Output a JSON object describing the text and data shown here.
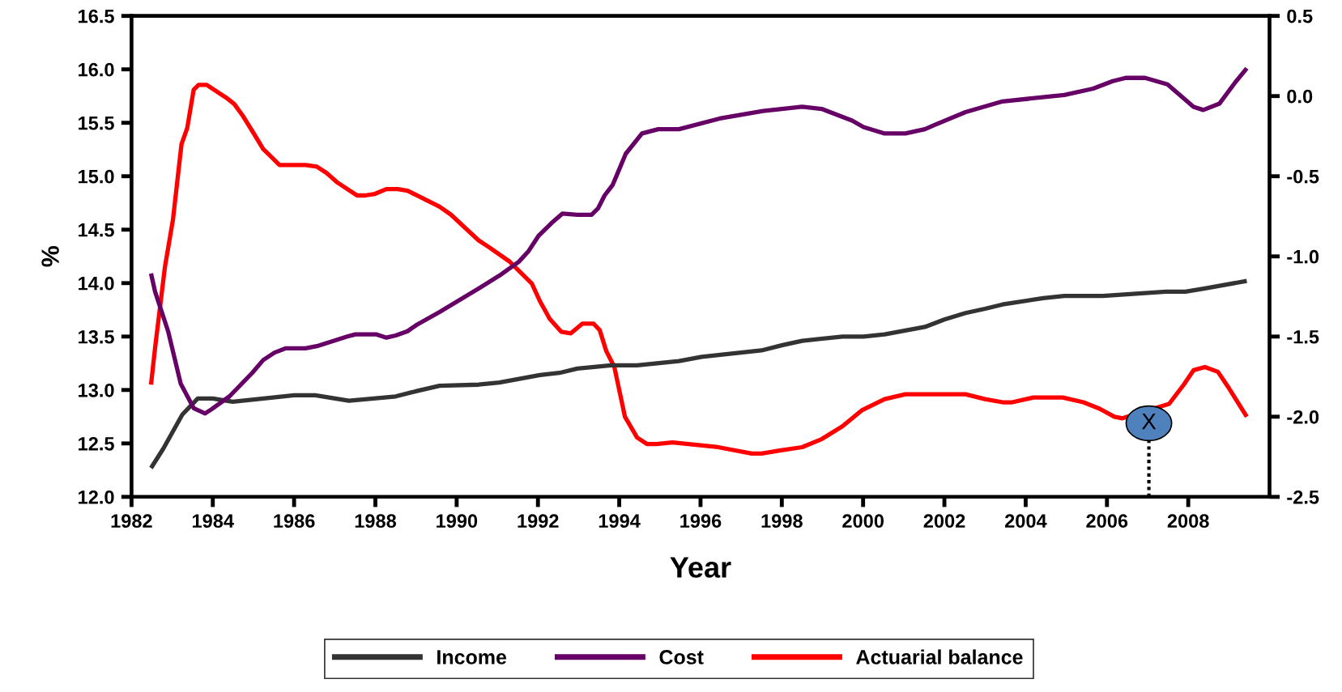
{
  "chart_data": {
    "type": "line",
    "xlabel": "Year",
    "ylabel": "%",
    "xlim": [
      1982,
      2010
    ],
    "xticks": [
      1982,
      1984,
      1986,
      1988,
      1990,
      1992,
      1994,
      1996,
      1998,
      2000,
      2002,
      2004,
      2006,
      2008
    ],
    "ylim": [
      12,
      16.5
    ],
    "yticks": [
      {
        "value": 12,
        "label": "12.0"
      },
      12.5,
      {
        "value": 13,
        "label": "13.0"
      },
      13.5,
      {
        "value": 14,
        "label": "14.0"
      },
      14.5,
      {
        "value": 15,
        "label": "15.0"
      },
      15.5,
      {
        "value": 16,
        "label": "16.0"
      },
      16.5
    ],
    "y2lim": [
      -2.5,
      0.5
    ],
    "y2ticks": [
      {
        "value": -2.5,
        "label": "-2.5"
      },
      {
        "value": -2,
        "label": "-2.0"
      },
      {
        "value": -1.5,
        "label": "-1.5"
      },
      {
        "value": -1,
        "label": "-1.0"
      },
      {
        "value": -0.5,
        "label": "-0.5"
      },
      {
        "value": 0,
        "label": "0.0"
      },
      0.5
    ],
    "grid": false,
    "legend": "bottom",
    "marker": "none",
    "line_style": "solid",
    "annotations": [
      "X"
    ],
    "series": [
      {
        "name": "Income",
        "color": "#333333",
        "x": [
          1982.48,
          1982.78,
          1983.25,
          1983.63,
          1984.0,
          1984.49,
          1986.0,
          1986.52,
          1987.35,
          1988.5,
          1989.02,
          1989.58,
          1990.54,
          1991.05,
          1992.05,
          1992.53,
          1992.97,
          1993.8,
          1994.44,
          1995.47,
          1996.03,
          1997.5,
          1998.02,
          1998.5,
          1999.49,
          2000.01,
          2000.53,
          2001.52,
          2002.0,
          2002.52,
          2003.0,
          2003.43,
          2004.43,
          2004.95,
          2005.9,
          2007.45,
          2007.93,
          2008.41,
          2009.44
        ],
        "values": [
          12.27,
          12.45,
          12.77,
          12.92,
          12.92,
          12.89,
          12.95,
          12.95,
          12.9,
          12.94,
          12.99,
          13.04,
          13.05,
          13.07,
          13.14,
          13.16,
          13.2,
          13.23,
          13.23,
          13.27,
          13.31,
          13.37,
          13.42,
          13.46,
          13.5,
          13.5,
          13.52,
          13.59,
          13.66,
          13.72,
          13.76,
          13.8,
          13.86,
          13.88,
          13.88,
          13.92,
          13.92,
          13.95,
          14.02
        ]
      },
      {
        "name": "Cost",
        "color": "#660066",
        "x": [
          1982.48,
          1982.58,
          1982.9,
          1983.21,
          1983.53,
          1983.81,
          1983.97,
          1984.41,
          1984.97,
          1985.24,
          1985.52,
          1985.8,
          1986.28,
          1986.56,
          1987.31,
          1987.51,
          1988.03,
          1988.27,
          1988.5,
          1988.79,
          1989.02,
          1989.58,
          1990.54,
          1991.05,
          1991.53,
          1991.77,
          1992.01,
          1992.33,
          1992.6,
          1992.97,
          1993.32,
          1993.48,
          1993.64,
          1993.84,
          1994.16,
          1994.56,
          1994.96,
          1995.47,
          1996.47,
          1997.54,
          1998.5,
          1998.98,
          1999.73,
          2000.01,
          2000.53,
          2001.04,
          2001.52,
          2001.76,
          2002.52,
          2003.43,
          2004.95,
          2005.66,
          2006.14,
          2006.46,
          2006.94,
          2007.49,
          2008.13,
          2008.37,
          2008.77,
          2009.16,
          2009.44
        ],
        "values": [
          14.09,
          13.92,
          13.55,
          13.06,
          12.83,
          12.78,
          12.82,
          12.94,
          13.16,
          13.28,
          13.35,
          13.39,
          13.39,
          13.41,
          13.5,
          13.52,
          13.52,
          13.49,
          13.51,
          13.55,
          13.61,
          13.73,
          13.95,
          14.07,
          14.2,
          14.3,
          14.44,
          14.56,
          14.65,
          14.64,
          14.64,
          14.7,
          14.82,
          14.92,
          15.21,
          15.4,
          15.44,
          15.44,
          15.54,
          15.61,
          15.65,
          15.63,
          15.52,
          15.46,
          15.4,
          15.4,
          15.44,
          15.48,
          15.6,
          15.7,
          15.76,
          15.82,
          15.89,
          15.92,
          15.92,
          15.86,
          15.65,
          15.62,
          15.68,
          15.88,
          16.01
        ]
      },
      {
        "name": "Actuarial balance",
        "color": "#ff0000",
        "axis": "y2",
        "x": [
          1982.48,
          1982.58,
          1982.82,
          1983.02,
          1983.23,
          1983.37,
          1983.53,
          1983.65,
          1983.85,
          1984.33,
          1984.53,
          1984.73,
          1985.0,
          1985.24,
          1985.44,
          1985.64,
          1986.28,
          1986.56,
          1986.8,
          1987.07,
          1987.55,
          1987.75,
          1987.99,
          1988.27,
          1988.55,
          1988.79,
          1989.58,
          1989.86,
          1990.54,
          1990.78,
          1991.29,
          1991.85,
          1992.05,
          1992.29,
          1992.57,
          1992.81,
          1993.09,
          1993.37,
          1993.52,
          1993.68,
          1993.88,
          1994.14,
          1994.44,
          1994.68,
          1994.92,
          1995.31,
          1996.43,
          1997.26,
          1997.5,
          1997.98,
          1998.5,
          1998.98,
          1999.49,
          1999.97,
          2000.53,
          2001.04,
          2002.52,
          2003.0,
          2003.43,
          2003.67,
          2004.19,
          2004.91,
          2005.42,
          2005.82,
          2006.18,
          2006.38,
          2007.53,
          2007.89,
          2008.13,
          2008.41,
          2008.73,
          2008.97,
          2009.44
        ],
        "values": [
          -1.8,
          -1.57,
          -1.07,
          -0.77,
          -0.3,
          -0.2,
          0.04,
          0.07,
          0.07,
          -0.01,
          -0.05,
          -0.12,
          -0.23,
          -0.33,
          -0.38,
          -0.43,
          -0.43,
          -0.44,
          -0.48,
          -0.54,
          -0.62,
          -0.62,
          -0.61,
          -0.58,
          -0.58,
          -0.59,
          -0.69,
          -0.74,
          -0.9,
          -0.94,
          -1.03,
          -1.17,
          -1.28,
          -1.39,
          -1.47,
          -1.48,
          -1.42,
          -1.42,
          -1.46,
          -1.59,
          -1.69,
          -2.0,
          -2.13,
          -2.17,
          -2.17,
          -2.16,
          -2.19,
          -2.23,
          -2.23,
          -2.21,
          -2.19,
          -2.14,
          -2.06,
          -1.96,
          -1.89,
          -1.86,
          -1.86,
          -1.89,
          -1.91,
          -1.91,
          -1.88,
          -1.88,
          -1.91,
          -1.95,
          -2.0,
          -2.01,
          -1.92,
          -1.8,
          -1.71,
          -1.69,
          -1.72,
          -1.81,
          -2.0
        ]
      }
    ]
  }
}
